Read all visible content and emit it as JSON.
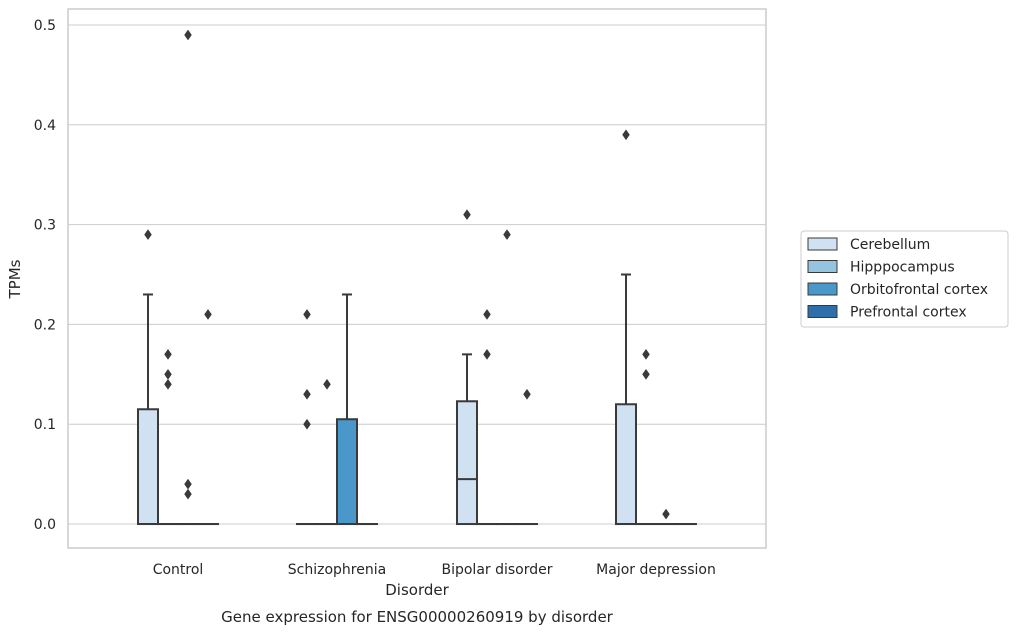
{
  "chart_data": {
    "type": "box",
    "title": "Gene expression for ENSG00000260919 by disorder",
    "xlabel": "Disorder",
    "ylabel": "TPMs",
    "ylim": [
      -0.024,
      0.516
    ],
    "yticks": [
      "0.0",
      "0.1",
      "0.2",
      "0.3",
      "0.4",
      "0.5"
    ],
    "grid": true,
    "legend_placement": "right",
    "categories": [
      "Control",
      "Schizophrenia",
      "Bipolar disorder",
      "Major depression"
    ],
    "series": [
      {
        "name": "Cerebellum",
        "color": "#d0e1f2",
        "boxes": [
          {
            "q1": 0,
            "median": 0,
            "q3": 0.115,
            "whisker_low": 0,
            "whisker_high": 0.23,
            "outliers": [
              0.29
            ]
          },
          {
            "q1": 0,
            "median": 0,
            "q3": 0,
            "whisker_low": 0,
            "whisker_high": 0,
            "outliers": [
              0.1,
              0.13,
              0.21
            ]
          },
          {
            "q1": 0,
            "median": 0.045,
            "q3": 0.123,
            "whisker_low": 0,
            "whisker_high": 0.17,
            "outliers": [
              0.31
            ]
          },
          {
            "q1": 0,
            "median": 0,
            "q3": 0.12,
            "whisker_low": 0,
            "whisker_high": 0.25,
            "outliers": [
              0.39
            ]
          }
        ]
      },
      {
        "name": "Hipppocampus",
        "color": "#94c4df",
        "boxes": [
          {
            "q1": 0,
            "median": 0,
            "q3": 0,
            "whisker_low": 0,
            "whisker_high": 0,
            "outliers": [
              0.14,
              0.15,
              0.17
            ]
          },
          {
            "q1": 0,
            "median": 0,
            "q3": 0,
            "whisker_low": 0,
            "whisker_high": 0,
            "outliers": [
              0.14
            ]
          },
          {
            "q1": 0,
            "median": 0,
            "q3": 0,
            "whisker_low": 0,
            "whisker_high": 0,
            "outliers": [
              0.17,
              0.21
            ]
          },
          {
            "q1": 0,
            "median": 0,
            "q3": 0,
            "whisker_low": 0,
            "whisker_high": 0,
            "outliers": [
              0.15,
              0.17
            ]
          }
        ]
      },
      {
        "name": "Orbitofrontal cortex",
        "color": "#4a98c9",
        "boxes": [
          {
            "q1": 0,
            "median": 0,
            "q3": 0,
            "whisker_low": 0,
            "whisker_high": 0,
            "outliers": [
              0.03,
              0.04,
              0.49
            ]
          },
          {
            "q1": 0,
            "median": 0,
            "q3": 0.105,
            "whisker_low": 0,
            "whisker_high": 0.23,
            "outliers": []
          },
          {
            "q1": 0,
            "median": 0,
            "q3": 0,
            "whisker_low": 0,
            "whisker_high": 0,
            "outliers": [
              0.29
            ]
          },
          {
            "q1": 0,
            "median": 0,
            "q3": 0,
            "whisker_low": 0,
            "whisker_high": 0,
            "outliers": [
              0.01
            ]
          }
        ]
      },
      {
        "name": "Prefrontal cortex",
        "color": "#2e6fab",
        "boxes": [
          {
            "q1": 0,
            "median": 0,
            "q3": 0,
            "whisker_low": 0,
            "whisker_high": 0,
            "outliers": [
              0.21
            ]
          },
          {
            "q1": 0,
            "median": 0,
            "q3": 0,
            "whisker_low": 0,
            "whisker_high": 0,
            "outliers": []
          },
          {
            "q1": 0,
            "median": 0,
            "q3": 0,
            "whisker_low": 0,
            "whisker_high": 0,
            "outliers": [
              0.13
            ]
          },
          {
            "q1": 0,
            "median": 0,
            "q3": 0,
            "whisker_low": 0,
            "whisker_high": 0,
            "outliers": []
          }
        ]
      }
    ]
  }
}
